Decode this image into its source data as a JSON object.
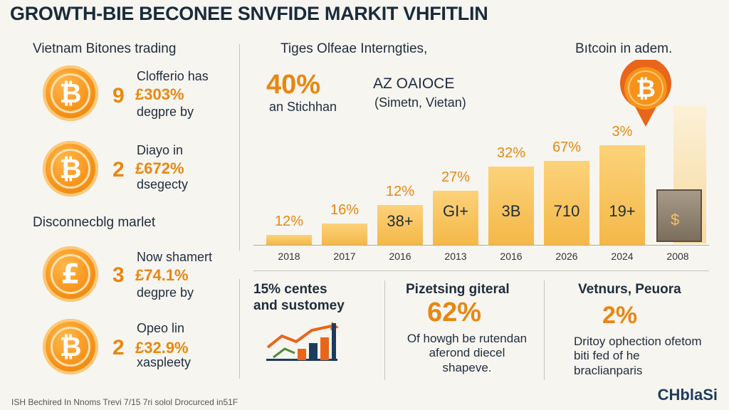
{
  "title": "GROWTH-BIE BECONEE SNVFIDE MARKIT VHFITLIN",
  "left": {
    "heading1": "Vietnam Bitones trading",
    "heading2": "Disconnecblg marlet",
    "rows": [
      {
        "rank": "9",
        "line1": "Clofferio has",
        "pct": "£303%",
        "line3": "degpre by",
        "symbol": "₿"
      },
      {
        "rank": "2",
        "line1": "Diayo in",
        "pct": "£672%",
        "line3": "dsegecty",
        "symbol": "₿"
      },
      {
        "rank": "3",
        "line1": "Now shamert",
        "pct": "£74.1%",
        "line3": "degpre by",
        "symbol": "£"
      },
      {
        "rank": "2",
        "line1": "Opeo lin",
        "pct": "£32.9%",
        "line3": "xaspleety",
        "symbol": "₿"
      }
    ]
  },
  "middle": {
    "heading": "Tiges Olfeae Interngties,",
    "big_pct": "40%",
    "big_caption": "an Stichhan",
    "ticker": "AZ OAIOCE",
    "ticker_sub": "(Simetn, Vietan)"
  },
  "right_heading": "Bıtcoin in adem.",
  "coin_symbol": "₿",
  "chart_data": {
    "type": "bar",
    "categories": [
      "2018",
      "2017",
      "2016",
      "2013",
      "2016",
      "2026",
      "2024",
      "2008"
    ],
    "values": [
      12,
      16,
      12,
      27,
      32,
      67,
      3,
      null
    ],
    "value_labels": [
      "12%",
      "16%",
      "12%",
      "27%",
      "32%",
      "67%",
      "3%",
      ""
    ],
    "inner_labels": [
      "",
      "",
      "38+",
      "GI+",
      "3B",
      "710",
      "19+",
      ""
    ],
    "colors": {
      "bar": "#f4b848",
      "label": "#e8870f"
    }
  },
  "bottom": [
    {
      "head": "15% centes and sustomey",
      "big": "",
      "body": ""
    },
    {
      "head": "Pizetsing giteral",
      "big": "62%",
      "body": "Of howgh be rutendan aferond diecel shapeve."
    },
    {
      "head": "Vetnurs, Peuora",
      "big": "2%",
      "body": "Dritoy ophection ofetom biti fed of he braclianparis"
    }
  ],
  "footnote": "ISH Bechired In Nnoms Trevi 7/15 7ri solol Drocurced in51F",
  "brand": "CHblaSi"
}
